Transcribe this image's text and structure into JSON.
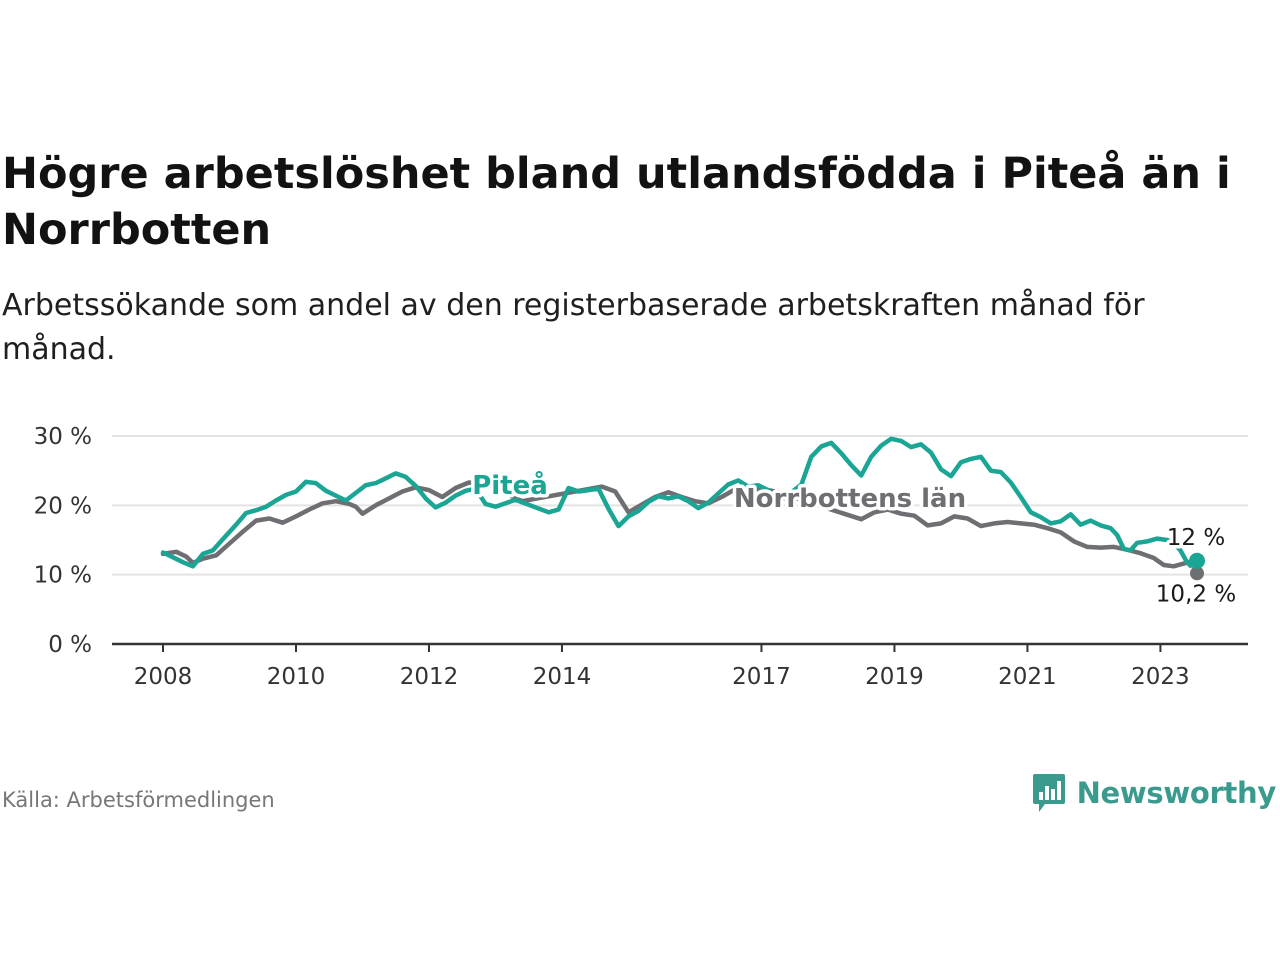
{
  "header": {
    "title": "Högre arbetslöshet bland utlandsfödda i Piteå än i Norrbotten",
    "subtitle": "Arbetssökande som andel av den registerbaserade arbetskraften månad för månad."
  },
  "footer": {
    "source": "Källa: Arbetsförmedlingen",
    "brand": "Newsworthy"
  },
  "colors": {
    "pitea": "#1aa595",
    "norrbotten": "#6e6e73",
    "grid": "#e3e3e3",
    "axis": "#333333",
    "brand": "#3b9a8e"
  },
  "chart_data": {
    "type": "line",
    "title": "Högre arbetslöshet bland utlandsfödda i Piteå än i Norrbotten",
    "xlabel": "",
    "ylabel": "",
    "ylim": [
      0,
      30
    ],
    "xlim": [
      2008.0,
      2023.55
    ],
    "y_ticks": [
      0,
      10,
      20,
      30
    ],
    "y_tick_labels": [
      "0 %",
      "10 %",
      "20 %",
      "30 %"
    ],
    "x_ticks": [
      2008,
      2010,
      2012,
      2014,
      2017,
      2019,
      2021,
      2023
    ],
    "x_tick_labels": [
      "2008",
      "2010",
      "2012",
      "2014",
      "2017",
      "2019",
      "2021",
      "2023"
    ],
    "grid": true,
    "series": [
      {
        "name": "Norrbottens län",
        "label": "Norrbottens län",
        "color": "#6e6e73",
        "end_label": "10,2 %",
        "points": [
          [
            2008.0,
            13.0
          ],
          [
            2008.2,
            13.3
          ],
          [
            2008.35,
            12.6
          ],
          [
            2008.45,
            11.7
          ],
          [
            2008.6,
            12.3
          ],
          [
            2008.8,
            12.8
          ],
          [
            2009.0,
            14.5
          ],
          [
            2009.2,
            16.2
          ],
          [
            2009.4,
            17.8
          ],
          [
            2009.6,
            18.1
          ],
          [
            2009.8,
            17.5
          ],
          [
            2010.0,
            18.4
          ],
          [
            2010.2,
            19.4
          ],
          [
            2010.4,
            20.3
          ],
          [
            2010.6,
            20.6
          ],
          [
            2010.8,
            20.2
          ],
          [
            2010.9,
            19.8
          ],
          [
            2011.0,
            18.8
          ],
          [
            2011.2,
            20.0
          ],
          [
            2011.4,
            21.0
          ],
          [
            2011.6,
            22.0
          ],
          [
            2011.8,
            22.6
          ],
          [
            2012.0,
            22.2
          ],
          [
            2012.2,
            21.2
          ],
          [
            2012.4,
            22.5
          ],
          [
            2012.6,
            23.3
          ],
          [
            2012.8,
            23.1
          ],
          [
            2013.0,
            22.8
          ],
          [
            2013.2,
            21.5
          ],
          [
            2013.4,
            20.6
          ],
          [
            2014.6,
            22.7
          ],
          [
            2014.8,
            22.0
          ],
          [
            2015.0,
            19.0
          ],
          [
            2015.2,
            20.1
          ],
          [
            2015.4,
            21.2
          ],
          [
            2015.6,
            21.9
          ],
          [
            2015.8,
            21.2
          ],
          [
            2016.0,
            20.6
          ],
          [
            2016.2,
            20.3
          ],
          [
            2016.4,
            21.2
          ],
          [
            2016.6,
            22.3
          ],
          [
            2016.8,
            22.0
          ],
          [
            2017.0,
            22.4
          ],
          [
            2017.2,
            22.0
          ],
          [
            2018.5,
            18.0
          ],
          [
            2018.7,
            19.0
          ],
          [
            2018.9,
            19.4
          ],
          [
            2019.1,
            18.8
          ],
          [
            2019.3,
            18.5
          ],
          [
            2019.5,
            17.1
          ],
          [
            2019.7,
            17.4
          ],
          [
            2019.9,
            18.4
          ],
          [
            2020.1,
            18.1
          ],
          [
            2020.3,
            17.0
          ],
          [
            2020.5,
            17.4
          ],
          [
            2020.7,
            17.6
          ],
          [
            2020.9,
            17.4
          ],
          [
            2021.1,
            17.2
          ],
          [
            2021.3,
            16.7
          ],
          [
            2021.5,
            16.1
          ],
          [
            2021.7,
            14.8
          ],
          [
            2021.9,
            14.0
          ],
          [
            2022.1,
            13.9
          ],
          [
            2022.3,
            14.0
          ],
          [
            2022.5,
            13.6
          ],
          [
            2022.7,
            13.1
          ],
          [
            2022.9,
            12.4
          ],
          [
            2023.05,
            11.4
          ],
          [
            2023.2,
            11.2
          ],
          [
            2023.35,
            11.6
          ],
          [
            2023.45,
            11.9
          ],
          [
            2023.5,
            11.4
          ],
          [
            2023.55,
            10.2
          ]
        ]
      },
      {
        "name": "Piteå",
        "label": "Piteå",
        "color": "#1aa595",
        "end_label": "12 %",
        "points": [
          [
            2008.0,
            13.2
          ],
          [
            2008.15,
            12.5
          ],
          [
            2008.3,
            11.8
          ],
          [
            2008.45,
            11.2
          ],
          [
            2008.6,
            13.0
          ],
          [
            2008.75,
            13.5
          ],
          [
            2008.9,
            15.1
          ],
          [
            2009.1,
            17.2
          ],
          [
            2009.25,
            18.9
          ],
          [
            2009.4,
            19.3
          ],
          [
            2009.55,
            19.8
          ],
          [
            2009.7,
            20.7
          ],
          [
            2009.85,
            21.5
          ],
          [
            2010.0,
            22.0
          ],
          [
            2010.15,
            23.4
          ],
          [
            2010.3,
            23.2
          ],
          [
            2010.45,
            22.1
          ],
          [
            2010.6,
            21.4
          ],
          [
            2010.75,
            20.7
          ],
          [
            2010.9,
            21.8
          ],
          [
            2011.05,
            22.9
          ],
          [
            2011.2,
            23.2
          ],
          [
            2011.35,
            23.9
          ],
          [
            2011.5,
            24.6
          ],
          [
            2011.65,
            24.1
          ],
          [
            2011.8,
            22.8
          ],
          [
            2011.95,
            21.0
          ],
          [
            2012.1,
            19.7
          ],
          [
            2012.25,
            20.4
          ],
          [
            2012.4,
            21.4
          ],
          [
            2012.55,
            22.1
          ],
          [
            2012.7,
            22.4
          ],
          [
            2012.85,
            20.2
          ],
          [
            2013.0,
            19.8
          ],
          [
            2013.15,
            20.3
          ],
          [
            2013.3,
            20.8
          ],
          [
            2013.8,
            19.0
          ],
          [
            2013.95,
            19.4
          ],
          [
            2014.1,
            22.5
          ],
          [
            2014.25,
            22.0
          ],
          [
            2014.4,
            22.2
          ],
          [
            2014.55,
            22.4
          ],
          [
            2014.7,
            19.5
          ],
          [
            2014.85,
            17.0
          ],
          [
            2015.0,
            18.4
          ],
          [
            2015.15,
            19.2
          ],
          [
            2015.3,
            20.5
          ],
          [
            2015.45,
            21.3
          ],
          [
            2015.6,
            21.0
          ],
          [
            2015.75,
            21.3
          ],
          [
            2015.9,
            20.6
          ],
          [
            2016.05,
            19.6
          ],
          [
            2016.2,
            20.4
          ],
          [
            2016.35,
            21.7
          ],
          [
            2016.5,
            23.0
          ],
          [
            2016.65,
            23.6
          ],
          [
            2016.8,
            22.7
          ],
          [
            2016.95,
            22.9
          ],
          [
            2017.1,
            22.2
          ],
          [
            2017.25,
            20.4
          ],
          [
            2017.6,
            23.0
          ],
          [
            2017.75,
            27.0
          ],
          [
            2017.9,
            28.5
          ],
          [
            2018.05,
            29.0
          ],
          [
            2018.2,
            27.5
          ],
          [
            2018.35,
            25.8
          ],
          [
            2018.5,
            24.3
          ],
          [
            2018.65,
            27.0
          ],
          [
            2018.8,
            28.6
          ],
          [
            2018.95,
            29.6
          ],
          [
            2019.1,
            29.3
          ],
          [
            2019.25,
            28.4
          ],
          [
            2019.4,
            28.8
          ],
          [
            2019.55,
            27.6
          ],
          [
            2019.7,
            25.2
          ],
          [
            2019.85,
            24.2
          ],
          [
            2020.0,
            26.2
          ],
          [
            2020.15,
            26.7
          ],
          [
            2020.3,
            27.0
          ],
          [
            2020.45,
            25.0
          ],
          [
            2020.6,
            24.8
          ],
          [
            2020.75,
            23.3
          ],
          [
            2020.9,
            21.2
          ],
          [
            2021.05,
            19.0
          ],
          [
            2021.2,
            18.3
          ],
          [
            2021.35,
            17.4
          ],
          [
            2021.5,
            17.7
          ],
          [
            2021.65,
            18.7
          ],
          [
            2021.8,
            17.2
          ],
          [
            2021.95,
            17.8
          ],
          [
            2022.1,
            17.1
          ],
          [
            2022.25,
            16.7
          ],
          [
            2022.35,
            15.7
          ],
          [
            2022.45,
            13.7
          ],
          [
            2022.55,
            13.5
          ],
          [
            2022.65,
            14.6
          ],
          [
            2022.8,
            14.8
          ],
          [
            2022.95,
            15.2
          ],
          [
            2023.1,
            15.0
          ],
          [
            2023.2,
            14.6
          ],
          [
            2023.3,
            13.5
          ],
          [
            2023.4,
            11.8
          ],
          [
            2023.45,
            11.3
          ],
          [
            2023.5,
            12.4
          ],
          [
            2023.55,
            12.0
          ]
        ]
      }
    ]
  }
}
